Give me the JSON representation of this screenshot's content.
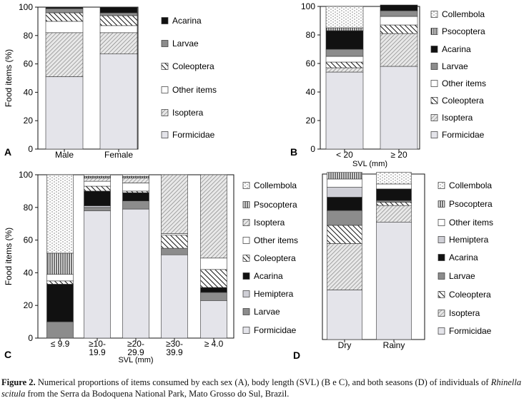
{
  "chart_data": [
    {
      "panel": "A",
      "type": "bar",
      "stacked": true,
      "ylabel": "Food items (%)",
      "xlabel": "",
      "ylim": [
        0,
        100
      ],
      "yticks": [
        0,
        20,
        40,
        60,
        80,
        100
      ],
      "categories": [
        "Male",
        "Female"
      ],
      "legend_position": "right",
      "series": [
        {
          "name": "Formicidae",
          "pattern": "formicidae",
          "values": [
            51,
            67
          ]
        },
        {
          "name": "Isoptera",
          "pattern": "isoptera",
          "values": [
            31,
            15
          ]
        },
        {
          "name": "Other items",
          "pattern": "other",
          "values": [
            8,
            5
          ]
        },
        {
          "name": "Coleoptera",
          "pattern": "coleoptera",
          "values": [
            6,
            7
          ]
        },
        {
          "name": "Larvae",
          "pattern": "larvae",
          "values": [
            3,
            2
          ]
        },
        {
          "name": "Acarina",
          "pattern": "acarina",
          "values": [
            1,
            4
          ]
        }
      ]
    },
    {
      "panel": "B",
      "type": "bar",
      "stacked": true,
      "ylabel": "",
      "xlabel": "SVL (mm)",
      "ylim": [
        0,
        100
      ],
      "yticks": [
        0,
        20,
        40,
        60,
        80,
        100
      ],
      "categories": [
        "< 20",
        "≥ 20"
      ],
      "legend_position": "right",
      "series": [
        {
          "name": "Formicidae",
          "pattern": "formicidae",
          "values": [
            54,
            58
          ]
        },
        {
          "name": "Isoptera",
          "pattern": "isoptera",
          "values": [
            3,
            23
          ]
        },
        {
          "name": "Coleoptera",
          "pattern": "coleoptera",
          "values": [
            4,
            6
          ]
        },
        {
          "name": "Other items",
          "pattern": "other",
          "values": [
            4,
            6
          ]
        },
        {
          "name": "Larvae",
          "pattern": "larvae",
          "values": [
            5,
            4
          ]
        },
        {
          "name": "Acarina",
          "pattern": "acarina",
          "values": [
            13,
            4
          ]
        },
        {
          "name": "Psocoptera",
          "pattern": "psocoptera",
          "values": [
            2,
            0
          ]
        },
        {
          "name": "Collembola",
          "pattern": "collembola",
          "values": [
            15,
            0
          ]
        }
      ]
    },
    {
      "panel": "C",
      "type": "bar",
      "stacked": true,
      "ylabel": "Food items (%)",
      "xlabel": "SVL (mm)",
      "ylim": [
        0,
        100
      ],
      "yticks": [
        0,
        20,
        40,
        60,
        80,
        100
      ],
      "categories": [
        [
          "≤ 9.9"
        ],
        [
          "≥10-",
          "19.9"
        ],
        [
          "≥20-",
          "29.9"
        ],
        [
          "≥30-",
          "39.9"
        ],
        [
          "≥ 4.0"
        ]
      ],
      "legend_position": "right",
      "series": [
        {
          "name": "Formicidae",
          "pattern": "formicidae",
          "values": [
            0,
            78,
            79,
            51,
            23
          ]
        },
        {
          "name": "Larvae",
          "pattern": "larvae",
          "values": [
            10,
            2,
            5,
            4,
            5
          ]
        },
        {
          "name": "Hemiptera",
          "pattern": "hemiptera",
          "values": [
            0,
            1,
            0,
            0,
            0
          ]
        },
        {
          "name": "Acarina",
          "pattern": "acarina",
          "values": [
            23,
            9,
            5,
            0,
            3
          ]
        },
        {
          "name": "Coleoptera",
          "pattern": "coleoptera",
          "values": [
            2,
            3,
            1,
            8,
            11
          ]
        },
        {
          "name": "Other items",
          "pattern": "other",
          "values": [
            4,
            3,
            5,
            1,
            7
          ]
        },
        {
          "name": "Isoptera",
          "pattern": "isoptera",
          "values": [
            0,
            2,
            3,
            36,
            51
          ]
        },
        {
          "name": "Psocoptera",
          "pattern": "psocoptera",
          "values": [
            13,
            1,
            1,
            0,
            0
          ]
        },
        {
          "name": "Collembola",
          "pattern": "collembola",
          "values": [
            48,
            1,
            1,
            0,
            0
          ]
        }
      ]
    },
    {
      "panel": "D",
      "type": "bar",
      "stacked": true,
      "ylabel": "",
      "xlabel": "",
      "ylim": [
        0,
        100
      ],
      "yticks": [],
      "categories": [
        "Dry",
        "Rainy"
      ],
      "legend_position": "right",
      "series": [
        {
          "name": "Formicidae",
          "pattern": "formicidae",
          "values": [
            30,
            71
          ]
        },
        {
          "name": "Isoptera",
          "pattern": "isoptera",
          "values": [
            28,
            10
          ]
        },
        {
          "name": "Coleoptera",
          "pattern": "coleoptera",
          "values": [
            11,
            2
          ]
        },
        {
          "name": "Larvae",
          "pattern": "larvae",
          "values": [
            9,
            1
          ]
        },
        {
          "name": "Acarina",
          "pattern": "acarina",
          "values": [
            8,
            7
          ]
        },
        {
          "name": "Hemiptera",
          "pattern": "hemiptera",
          "values": [
            6,
            0
          ]
        },
        {
          "name": "Other items",
          "pattern": "other",
          "values": [
            5,
            3
          ]
        },
        {
          "name": "Psocoptera",
          "pattern": "psocoptera",
          "values": [
            4,
            0
          ]
        },
        {
          "name": "Collembola",
          "pattern": "collembola",
          "values": [
            0,
            7
          ]
        }
      ]
    }
  ],
  "legends": {
    "A": [
      "Acarina",
      "Larvae",
      "Coleoptera",
      "Other items",
      "Isoptera",
      "Formicidae"
    ],
    "B": [
      "Collembola",
      "Psocoptera",
      "Acarina",
      "Larvae",
      "Other items",
      "Coleoptera",
      "Isoptera",
      "Formicidae"
    ],
    "C": [
      "Collembola",
      "Psocoptera",
      "Isoptera",
      "Other items",
      "Coleoptera",
      "Acarina",
      "Hemiptera",
      "Larvae",
      "Formicidae"
    ],
    "D": [
      "Collembola",
      "Psocoptera",
      "Other items",
      "Hemiptera",
      "Acarina",
      "Larvae",
      "Coleoptera",
      "Isoptera",
      "Formicidae"
    ]
  },
  "caption": {
    "label": "Figure 2.",
    "text1": " Numerical proportions of items consumed by each sex (A), body length (SVL) (B e C), and both seasons (D) of individuals of ",
    "species": "Rhinella scitula",
    "text2": " from the Serra da Bodoquena National Park, Mato Grosso do Sul, Brazil."
  }
}
